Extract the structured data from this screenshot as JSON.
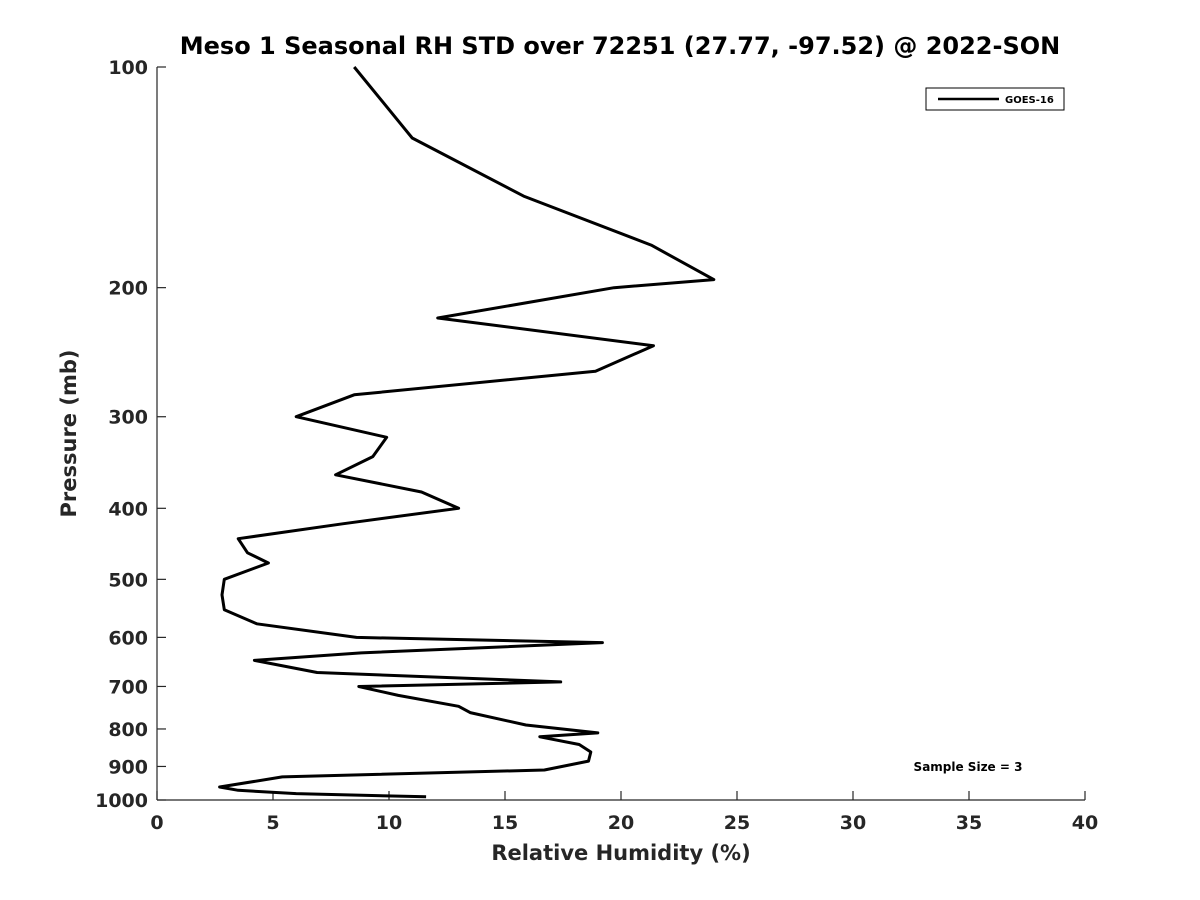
{
  "chart_data": {
    "type": "line",
    "title": "Meso 1 Seasonal RH STD over 72251 (27.77, -97.52) @ 2022-SON",
    "xlabel": "Relative Humidity (%)",
    "ylabel": "Pressure (mb)",
    "xlim": [
      0,
      40
    ],
    "ylim": [
      100,
      1000
    ],
    "y_scale": "log",
    "y_reversed": true,
    "x_ticks": [
      0,
      5,
      10,
      15,
      20,
      25,
      30,
      35,
      40
    ],
    "y_ticks": [
      100,
      200,
      300,
      400,
      500,
      600,
      700,
      800,
      900,
      1000
    ],
    "grid": false,
    "legend_position": "top-right",
    "annotation": "Sample Size = 3",
    "series": [
      {
        "name": "GOES-16",
        "color": "#000000",
        "x": [
          8.5,
          11.0,
          15.8,
          21.3,
          24.0,
          19.7,
          12.1,
          21.4,
          18.9,
          8.5,
          6.0,
          9.9,
          9.3,
          7.7,
          11.4,
          13.0,
          8.0,
          3.5,
          3.9,
          4.8,
          2.9,
          2.8,
          2.9,
          4.3,
          8.6,
          19.2,
          8.8,
          4.2,
          6.9,
          17.4,
          8.7,
          10.4,
          13.0,
          13.5,
          15.9,
          19.0,
          16.5,
          18.2,
          18.7,
          18.6,
          16.7,
          5.4,
          2.7,
          3.5,
          6.0,
          11.6
        ],
        "y": [
          100,
          125,
          150,
          175,
          195,
          200,
          220,
          240,
          260,
          280,
          300,
          320,
          340,
          360,
          380,
          400,
          420,
          440,
          460,
          475,
          500,
          525,
          550,
          575,
          600,
          610,
          630,
          645,
          670,
          690,
          700,
          720,
          745,
          760,
          790,
          810,
          820,
          840,
          860,
          885,
          910,
          930,
          960,
          970,
          980,
          990
        ]
      }
    ]
  }
}
